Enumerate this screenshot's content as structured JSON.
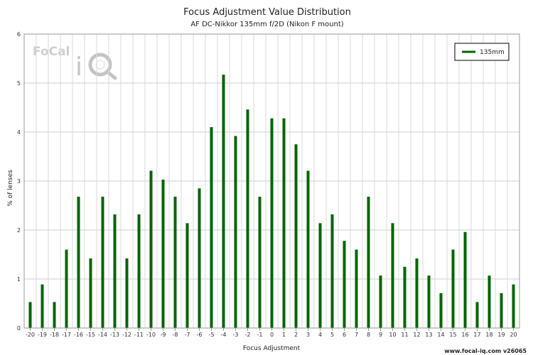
{
  "chart_data": {
    "type": "bar",
    "title": "Focus Adjustment Value Distribution",
    "subtitle": "AF DC-Nikkor 135mm f/2D (Nikon F mount)",
    "xlabel": "Focus Adjustment",
    "ylabel": "% of lenses",
    "ylim": [
      0,
      6
    ],
    "yticks": [
      "0",
      "1",
      "2",
      "3",
      "4",
      "5",
      "6"
    ],
    "grid": true,
    "legend_position": "top-right",
    "categories": [
      "-20",
      "-19",
      "-18",
      "-17",
      "-16",
      "-15",
      "-14",
      "-13",
      "-12",
      "-11",
      "-10",
      "-9",
      "-8",
      "-7",
      "-6",
      "-5",
      "-4",
      "-3",
      "-2",
      "-1",
      "0",
      "1",
      "2",
      "3",
      "4",
      "5",
      "6",
      "7",
      "8",
      "9",
      "10",
      "11",
      "12",
      "13",
      "14",
      "15",
      "16",
      "17",
      "18",
      "19",
      "20"
    ],
    "series": [
      {
        "name": "135mm",
        "color": "#006400",
        "values": [
          0.53,
          0.89,
          0.53,
          1.6,
          2.68,
          1.42,
          2.68,
          2.32,
          1.42,
          2.32,
          3.21,
          3.03,
          2.68,
          2.14,
          2.85,
          4.1,
          5.17,
          3.92,
          4.46,
          2.68,
          4.28,
          4.28,
          3.75,
          3.21,
          2.14,
          2.32,
          1.78,
          1.6,
          2.68,
          1.07,
          2.14,
          1.25,
          1.42,
          1.07,
          0.71,
          1.6,
          1.96,
          0.53,
          1.07,
          0.71,
          0.89
        ]
      }
    ]
  },
  "logo": {
    "text": "FoCal",
    "mark": "iQ"
  },
  "footer": "www.focal-iq.com  v26065"
}
